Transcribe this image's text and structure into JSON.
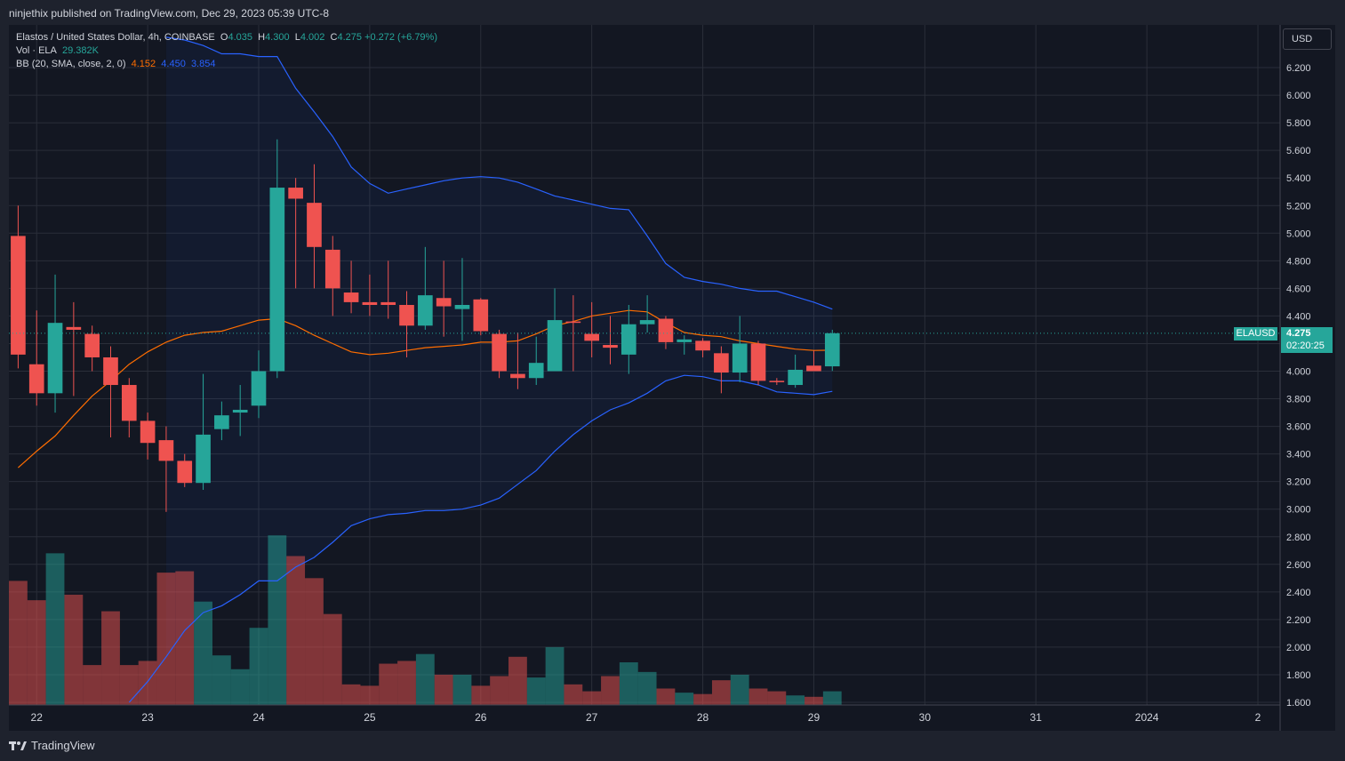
{
  "header": {
    "publish_line": "ninjethix published on TradingView.com, Dec 29, 2023 05:39 UTC-8"
  },
  "legend": {
    "symbol": "Elastos / United States Dollar, 4h, COINBASE",
    "o_label": "O",
    "o_value": "4.035",
    "h_label": "H",
    "h_value": "4.300",
    "l_label": "L",
    "l_value": "4.002",
    "c_label": "C",
    "c_value": "4.275",
    "change": "+0.272 (+6.79%)",
    "vol_label": "Vol · ELA",
    "vol_value": "29.382K",
    "bb_label": "BB (20, SMA, close, 2, 0)",
    "bb_basis": "4.152",
    "bb_upper": "4.450",
    "bb_lower": "3.854"
  },
  "price_axis": {
    "currency": "USD",
    "last_price": "4.275",
    "countdown": "02:20:25",
    "symbol_tag": "ELAUSD"
  },
  "footer": {
    "brand": "TradingView"
  },
  "colors": {
    "up": "#26a69a",
    "down": "#ef5350",
    "bb_band": "#2962ff",
    "bb_basis": "#ff6d00",
    "grid": "#2a2e39",
    "background": "#131722"
  },
  "chart_data": {
    "type": "candlestick",
    "title": "Elastos / United States Dollar, 4h, COINBASE",
    "ylim": [
      1.6,
      6.4
    ],
    "y_ticks": [
      6.2,
      6.0,
      5.8,
      5.6,
      5.4,
      5.2,
      5.0,
      4.8,
      4.6,
      4.4,
      4.2,
      4.0,
      3.8,
      3.6,
      3.4,
      3.2,
      3.0,
      2.8,
      2.6,
      2.4,
      2.2,
      2.0,
      1.8,
      1.6
    ],
    "y_tick_labels": [
      "6.200",
      "6.000",
      "5.800",
      "5.600",
      "5.400",
      "5.200",
      "5.000",
      "4.800",
      "4.600",
      "4.400",
      "4.200",
      "4.000",
      "3.800",
      "3.600",
      "3.400",
      "3.200",
      "3.000",
      "2.800",
      "2.600",
      "2.400",
      "2.200",
      "2.000",
      "1.800",
      "1.600"
    ],
    "x_labels": [
      "22",
      "23",
      "24",
      "25",
      "26",
      "27",
      "28",
      "29",
      "30",
      "31",
      "2024",
      "2"
    ],
    "x_label_slots": [
      1.5,
      7.5,
      13.5,
      19.5,
      25.5,
      31.5,
      37.5,
      43.5,
      49.5,
      55.5,
      61.5,
      67.5
    ],
    "slot_count": 68.7,
    "candles": [
      {
        "o": 4.98,
        "h": 5.2,
        "l": 4.02,
        "c": 4.12
      },
      {
        "o": 4.05,
        "h": 4.44,
        "l": 3.75,
        "c": 3.84
      },
      {
        "o": 3.84,
        "h": 4.7,
        "l": 3.7,
        "c": 4.35
      },
      {
        "o": 4.32,
        "h": 4.5,
        "l": 3.82,
        "c": 4.3
      },
      {
        "o": 4.27,
        "h": 4.33,
        "l": 4.0,
        "c": 4.1
      },
      {
        "o": 4.1,
        "h": 4.18,
        "l": 3.52,
        "c": 3.9
      },
      {
        "o": 3.9,
        "h": 3.95,
        "l": 3.52,
        "c": 3.64
      },
      {
        "o": 3.64,
        "h": 3.7,
        "l": 3.36,
        "c": 3.48
      },
      {
        "o": 3.5,
        "h": 3.6,
        "l": 2.98,
        "c": 3.35
      },
      {
        "o": 3.35,
        "h": 3.4,
        "l": 3.16,
        "c": 3.19
      },
      {
        "o": 3.19,
        "h": 3.98,
        "l": 3.14,
        "c": 3.54
      },
      {
        "o": 3.58,
        "h": 3.78,
        "l": 3.5,
        "c": 3.68
      },
      {
        "o": 3.7,
        "h": 3.9,
        "l": 3.53,
        "c": 3.72
      },
      {
        "o": 3.75,
        "h": 4.15,
        "l": 3.66,
        "c": 4.0
      },
      {
        "o": 4.0,
        "h": 5.68,
        "l": 3.95,
        "c": 5.33
      },
      {
        "o": 5.33,
        "h": 5.4,
        "l": 4.6,
        "c": 5.25
      },
      {
        "o": 5.22,
        "h": 5.5,
        "l": 4.6,
        "c": 4.9
      },
      {
        "o": 4.88,
        "h": 4.98,
        "l": 4.4,
        "c": 4.6
      },
      {
        "o": 4.57,
        "h": 4.8,
        "l": 4.42,
        "c": 4.5
      },
      {
        "o": 4.5,
        "h": 4.7,
        "l": 4.4,
        "c": 4.48
      },
      {
        "o": 4.5,
        "h": 4.8,
        "l": 4.38,
        "c": 4.48
      },
      {
        "o": 4.48,
        "h": 4.58,
        "l": 4.1,
        "c": 4.33
      },
      {
        "o": 4.33,
        "h": 4.9,
        "l": 4.3,
        "c": 4.55
      },
      {
        "o": 4.53,
        "h": 4.8,
        "l": 4.25,
        "c": 4.47
      },
      {
        "o": 4.45,
        "h": 4.82,
        "l": 4.22,
        "c": 4.48
      },
      {
        "o": 4.52,
        "h": 4.53,
        "l": 4.26,
        "c": 4.29
      },
      {
        "o": 4.27,
        "h": 4.3,
        "l": 3.95,
        "c": 4.0
      },
      {
        "o": 3.98,
        "h": 4.28,
        "l": 3.87,
        "c": 3.95
      },
      {
        "o": 3.95,
        "h": 4.25,
        "l": 3.9,
        "c": 4.06
      },
      {
        "o": 4.0,
        "h": 4.6,
        "l": 4.02,
        "c": 4.37
      },
      {
        "o": 4.36,
        "h": 4.55,
        "l": 4.0,
        "c": 4.35
      },
      {
        "o": 4.27,
        "h": 4.5,
        "l": 4.1,
        "c": 4.22
      },
      {
        "o": 4.19,
        "h": 4.4,
        "l": 4.05,
        "c": 4.17
      },
      {
        "o": 4.12,
        "h": 4.48,
        "l": 3.98,
        "c": 4.34
      },
      {
        "o": 4.34,
        "h": 4.55,
        "l": 4.28,
        "c": 4.37
      },
      {
        "o": 4.38,
        "h": 4.4,
        "l": 4.16,
        "c": 4.21
      },
      {
        "o": 4.21,
        "h": 4.26,
        "l": 4.12,
        "c": 4.23
      },
      {
        "o": 4.22,
        "h": 4.24,
        "l": 4.1,
        "c": 4.15
      },
      {
        "o": 4.13,
        "h": 4.18,
        "l": 3.84,
        "c": 3.99
      },
      {
        "o": 3.99,
        "h": 4.4,
        "l": 3.92,
        "c": 4.2
      },
      {
        "o": 4.2,
        "h": 4.22,
        "l": 3.9,
        "c": 3.93
      },
      {
        "o": 3.93,
        "h": 3.95,
        "l": 3.9,
        "c": 3.92
      },
      {
        "o": 3.9,
        "h": 4.12,
        "l": 3.88,
        "c": 4.01
      },
      {
        "o": 4.04,
        "h": 4.15,
        "l": 4.0,
        "c": 4.0
      },
      {
        "o": 4.035,
        "h": 4.3,
        "l": 4.002,
        "c": 4.275
      }
    ],
    "volume": [
      2.48,
      2.34,
      2.68,
      2.38,
      1.87,
      2.26,
      1.87,
      1.9,
      2.54,
      2.55,
      2.33,
      1.94,
      1.84,
      2.14,
      2.81,
      2.66,
      2.5,
      2.24,
      1.73,
      1.72,
      1.88,
      1.9,
      1.95,
      1.8,
      1.8,
      1.72,
      1.79,
      1.93,
      1.78,
      2.0,
      1.73,
      1.68,
      1.79,
      1.89,
      1.82,
      1.7,
      1.67,
      1.66,
      1.76,
      1.8,
      1.7,
      1.68,
      1.65,
      1.64,
      1.68
    ],
    "bb_basis": [
      3.3,
      3.42,
      3.53,
      3.68,
      3.82,
      3.93,
      4.05,
      4.14,
      4.21,
      4.26,
      4.28,
      4.29,
      4.33,
      4.37,
      4.38,
      4.33,
      4.26,
      4.2,
      4.14,
      4.12,
      4.13,
      4.15,
      4.17,
      4.18,
      4.19,
      4.21,
      4.21,
      4.22,
      4.27,
      4.33,
      4.36,
      4.4,
      4.42,
      4.44,
      4.43,
      4.35,
      4.28,
      4.26,
      4.25,
      4.22,
      4.2,
      4.18,
      4.16,
      4.15,
      4.152
    ],
    "bb_upper": [
      null,
      null,
      null,
      null,
      null,
      null,
      null,
      null,
      6.42,
      6.4,
      6.36,
      6.3,
      6.3,
      6.28,
      6.28,
      6.05,
      5.88,
      5.7,
      5.48,
      5.36,
      5.29,
      5.32,
      5.35,
      5.38,
      5.4,
      5.41,
      5.4,
      5.37,
      5.32,
      5.27,
      5.24,
      5.21,
      5.18,
      5.17,
      4.98,
      4.78,
      4.68,
      4.65,
      4.63,
      4.6,
      4.58,
      4.58,
      4.54,
      4.5,
      4.45
    ],
    "bb_lower": [
      null,
      null,
      null,
      null,
      null,
      null,
      1.6,
      1.75,
      1.93,
      2.12,
      2.25,
      2.3,
      2.38,
      2.48,
      2.48,
      2.58,
      2.65,
      2.76,
      2.88,
      2.93,
      2.96,
      2.97,
      2.99,
      2.99,
      3.0,
      3.03,
      3.08,
      3.18,
      3.28,
      3.42,
      3.54,
      3.64,
      3.72,
      3.77,
      3.84,
      3.93,
      3.97,
      3.96,
      3.93,
      3.93,
      3.9,
      3.85,
      3.84,
      3.83,
      3.854
    ]
  }
}
